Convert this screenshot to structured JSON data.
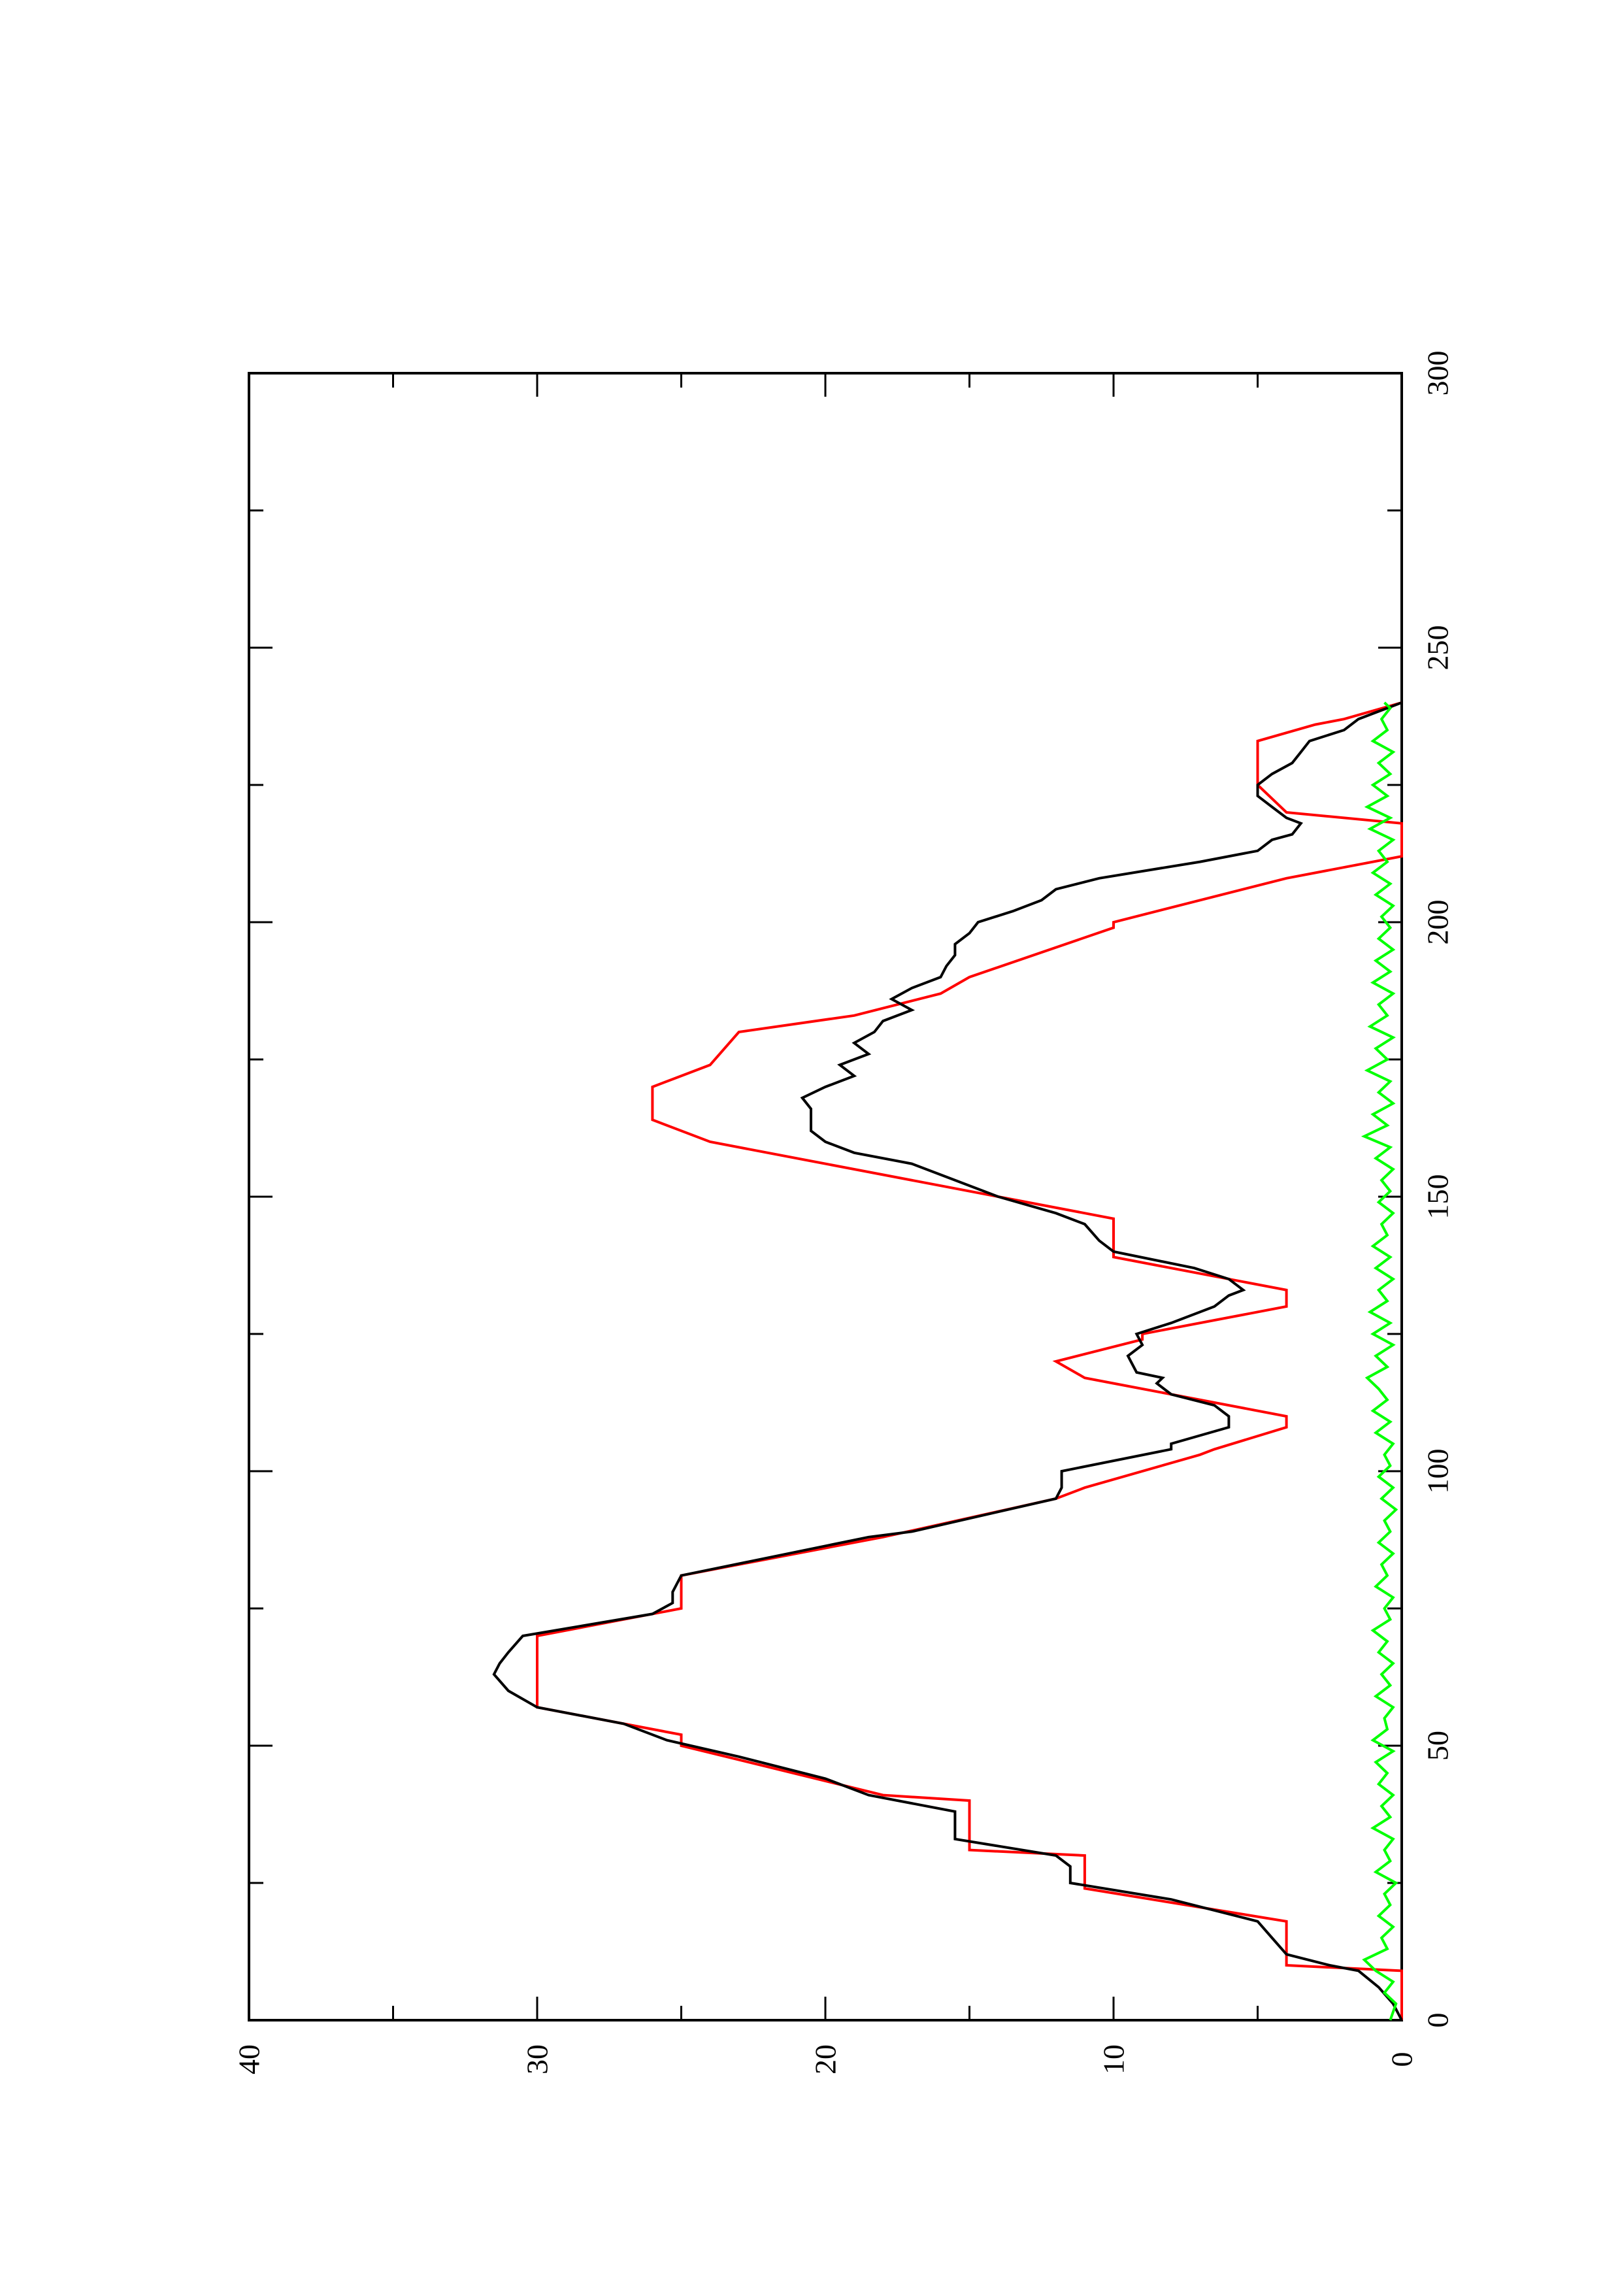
{
  "chart_data": {
    "type": "line",
    "orientation": "rotated-90-ccw",
    "title": "",
    "xlabel": "",
    "ylabel": "",
    "xlim": [
      0,
      300
    ],
    "ylim": [
      0,
      40
    ],
    "x_ticks": [
      "0",
      "50",
      "100",
      "150",
      "200",
      "250",
      "300"
    ],
    "y_ticks": [
      "0",
      "10",
      "20",
      "30",
      "40"
    ],
    "grid": false,
    "legend": "none",
    "series": [
      {
        "color": "#ff0000",
        "style": "step-ramp",
        "points": [
          [
            0,
            0
          ],
          [
            9,
            0
          ],
          [
            10,
            4
          ],
          [
            18,
            4
          ],
          [
            24,
            11
          ],
          [
            30,
            11
          ],
          [
            31,
            15
          ],
          [
            40,
            15
          ],
          [
            41,
            18
          ],
          [
            50,
            25
          ],
          [
            52,
            25
          ],
          [
            57,
            30
          ],
          [
            70,
            30
          ],
          [
            75,
            25
          ],
          [
            81,
            25
          ],
          [
            88,
            18
          ],
          [
            95,
            12
          ],
          [
            97,
            11
          ],
          [
            103,
            7
          ],
          [
            104,
            6.5
          ],
          [
            108,
            4
          ],
          [
            110,
            4
          ],
          [
            116,
            10
          ],
          [
            117,
            11
          ],
          [
            120,
            12
          ],
          [
            124,
            9
          ],
          [
            125,
            9
          ],
          [
            130,
            4
          ],
          [
            133,
            4
          ],
          [
            139,
            10
          ],
          [
            146,
            10
          ],
          [
            152,
            16
          ],
          [
            160,
            24
          ],
          [
            164,
            26
          ],
          [
            170,
            26
          ],
          [
            174,
            24
          ],
          [
            180,
            23
          ],
          [
            183,
            19
          ],
          [
            187,
            16
          ],
          [
            190,
            15
          ],
          [
            199,
            10
          ],
          [
            200,
            10
          ],
          [
            208,
            4
          ],
          [
            212,
            0
          ],
          [
            218,
            0
          ],
          [
            220,
            4
          ],
          [
            225,
            5
          ],
          [
            233,
            5
          ],
          [
            236,
            3
          ],
          [
            237,
            2
          ],
          [
            240,
            0
          ]
        ]
      },
      {
        "color": "#000000",
        "style": "line",
        "points": [
          [
            0,
            0
          ],
          [
            3,
            0.3
          ],
          [
            6,
            0.8
          ],
          [
            9,
            1.5
          ],
          [
            10,
            2.5
          ],
          [
            12,
            4
          ],
          [
            15,
            4.5
          ],
          [
            18,
            5
          ],
          [
            22,
            8
          ],
          [
            25,
            11.5
          ],
          [
            28,
            11.5
          ],
          [
            30,
            12
          ],
          [
            33,
            15.5
          ],
          [
            37,
            15.5
          ],
          [
            38,
            15.5
          ],
          [
            40,
            17.5
          ],
          [
            41,
            18.5
          ],
          [
            44,
            20
          ],
          [
            48,
            23
          ],
          [
            51,
            25.5
          ],
          [
            54,
            27
          ],
          [
            57,
            30
          ],
          [
            60,
            31
          ],
          [
            63,
            31.5
          ],
          [
            65,
            31.3
          ],
          [
            67,
            31
          ],
          [
            70,
            30.5
          ],
          [
            74,
            26
          ],
          [
            76,
            25.3
          ],
          [
            78,
            25.3
          ],
          [
            81,
            25
          ],
          [
            88,
            18.5
          ],
          [
            89,
            17
          ],
          [
            95,
            12
          ],
          [
            97,
            11.8
          ],
          [
            100,
            11.8
          ],
          [
            104,
            8
          ],
          [
            105,
            8
          ],
          [
            108,
            6
          ],
          [
            110,
            6
          ],
          [
            112,
            6.5
          ],
          [
            114,
            8
          ],
          [
            116,
            8.5
          ],
          [
            117,
            8.3
          ],
          [
            118,
            9.2
          ],
          [
            121,
            9.5
          ],
          [
            123,
            9
          ],
          [
            125,
            9.2
          ],
          [
            127,
            8
          ],
          [
            130,
            6.5
          ],
          [
            132,
            6
          ],
          [
            133,
            5.5
          ],
          [
            135,
            6
          ],
          [
            137,
            7.2
          ],
          [
            140,
            10
          ],
          [
            142,
            10.5
          ],
          [
            145,
            11
          ],
          [
            147,
            12
          ],
          [
            150,
            14
          ],
          [
            154,
            16
          ],
          [
            156,
            17
          ],
          [
            158,
            19
          ],
          [
            160,
            20
          ],
          [
            162,
            20.5
          ],
          [
            164,
            20.5
          ],
          [
            166,
            20.5
          ],
          [
            168,
            20.8
          ],
          [
            170,
            20
          ],
          [
            172,
            19
          ],
          [
            174,
            19.5
          ],
          [
            175,
            19
          ],
          [
            176,
            18.5
          ],
          [
            178,
            19
          ],
          [
            180,
            18.3
          ],
          [
            182,
            18
          ],
          [
            184,
            17
          ],
          [
            186,
            17.7
          ],
          [
            188,
            17
          ],
          [
            190,
            16
          ],
          [
            192,
            15.8
          ],
          [
            194,
            15.5
          ],
          [
            196,
            15.5
          ],
          [
            198,
            15
          ],
          [
            200,
            14.7
          ],
          [
            202,
            13.5
          ],
          [
            204,
            12.5
          ],
          [
            206,
            12
          ],
          [
            208,
            10.5
          ],
          [
            211,
            7
          ],
          [
            213,
            5
          ],
          [
            215,
            4.5
          ],
          [
            216,
            3.8
          ],
          [
            218,
            3.5
          ],
          [
            219,
            4
          ],
          [
            221,
            4.5
          ],
          [
            223,
            5
          ],
          [
            225,
            5
          ],
          [
            227,
            4.5
          ],
          [
            229,
            3.8
          ],
          [
            231,
            3.5
          ],
          [
            233,
            3.2
          ],
          [
            235,
            2
          ],
          [
            237,
            1.5
          ],
          [
            240,
            0
          ]
        ]
      },
      {
        "color": "#00ff00",
        "style": "line",
        "points": [
          [
            0,
            0.4
          ],
          [
            3,
            0.2
          ],
          [
            5,
            0.6
          ],
          [
            7,
            0.3
          ],
          [
            9,
            0.9
          ],
          [
            11,
            1.3
          ],
          [
            13,
            0.5
          ],
          [
            15,
            0.7
          ],
          [
            17,
            0.3
          ],
          [
            19,
            0.8
          ],
          [
            21,
            0.4
          ],
          [
            23,
            0.6
          ],
          [
            25,
            0.2
          ],
          [
            27,
            0.9
          ],
          [
            29,
            0.4
          ],
          [
            31,
            0.6
          ],
          [
            33,
            0.3
          ],
          [
            35,
            1.0
          ],
          [
            37,
            0.4
          ],
          [
            39,
            0.7
          ],
          [
            41,
            0.3
          ],
          [
            43,
            0.8
          ],
          [
            45,
            0.5
          ],
          [
            47,
            0.9
          ],
          [
            49,
            0.3
          ],
          [
            51,
            1.0
          ],
          [
            53,
            0.5
          ],
          [
            55,
            0.6
          ],
          [
            57,
            0.3
          ],
          [
            59,
            0.9
          ],
          [
            61,
            0.4
          ],
          [
            63,
            0.7
          ],
          [
            65,
            0.3
          ],
          [
            67,
            0.8
          ],
          [
            69,
            0.5
          ],
          [
            71,
            1.0
          ],
          [
            73,
            0.4
          ],
          [
            75,
            0.6
          ],
          [
            77,
            0.3
          ],
          [
            79,
            0.9
          ],
          [
            81,
            0.5
          ],
          [
            83,
            0.7
          ],
          [
            85,
            0.3
          ],
          [
            87,
            0.8
          ],
          [
            89,
            0.4
          ],
          [
            91,
            0.6
          ],
          [
            93,
            0.2
          ],
          [
            95,
            0.7
          ],
          [
            97,
            0.3
          ],
          [
            99,
            0.8
          ],
          [
            101,
            0.4
          ],
          [
            103,
            0.6
          ],
          [
            105,
            0.3
          ],
          [
            107,
            0.9
          ],
          [
            109,
            0.4
          ],
          [
            111,
            1.0
          ],
          [
            113,
            0.5
          ],
          [
            115,
            0.8
          ],
          [
            117,
            1.2
          ],
          [
            119,
            0.5
          ],
          [
            121,
            0.9
          ],
          [
            123,
            0.3
          ],
          [
            125,
            1.0
          ],
          [
            127,
            0.4
          ],
          [
            129,
            1.1
          ],
          [
            131,
            0.5
          ],
          [
            133,
            0.8
          ],
          [
            135,
            0.3
          ],
          [
            137,
            0.9
          ],
          [
            139,
            0.4
          ],
          [
            141,
            1.0
          ],
          [
            143,
            0.5
          ],
          [
            145,
            0.7
          ],
          [
            147,
            0.3
          ],
          [
            149,
            0.8
          ],
          [
            151,
            0.4
          ],
          [
            153,
            0.7
          ],
          [
            155,
            0.3
          ],
          [
            157,
            0.9
          ],
          [
            159,
            0.4
          ],
          [
            161,
            1.3
          ],
          [
            163,
            0.5
          ],
          [
            165,
            1.0
          ],
          [
            167,
            0.3
          ],
          [
            169,
            0.8
          ],
          [
            171,
            0.4
          ],
          [
            173,
            1.2
          ],
          [
            175,
            0.5
          ],
          [
            177,
            0.9
          ],
          [
            179,
            0.3
          ],
          [
            181,
            1.1
          ],
          [
            183,
            0.5
          ],
          [
            185,
            0.8
          ],
          [
            187,
            0.3
          ],
          [
            189,
            1.0
          ],
          [
            191,
            0.4
          ],
          [
            193,
            0.9
          ],
          [
            195,
            0.3
          ],
          [
            197,
            0.8
          ],
          [
            199,
            0.4
          ],
          [
            201,
            0.7
          ],
          [
            203,
            0.3
          ],
          [
            205,
            0.9
          ],
          [
            207,
            0.4
          ],
          [
            209,
            1.0
          ],
          [
            211,
            0.5
          ],
          [
            213,
            0.8
          ],
          [
            215,
            0.3
          ],
          [
            217,
            1.1
          ],
          [
            219,
            0.4
          ],
          [
            221,
            1.2
          ],
          [
            223,
            0.5
          ],
          [
            225,
            1.0
          ],
          [
            227,
            0.4
          ],
          [
            229,
            0.8
          ],
          [
            231,
            0.3
          ],
          [
            233,
            1.0
          ],
          [
            235,
            0.5
          ],
          [
            237,
            0.7
          ],
          [
            239,
            0.4
          ],
          [
            240,
            0.6
          ]
        ]
      }
    ]
  }
}
